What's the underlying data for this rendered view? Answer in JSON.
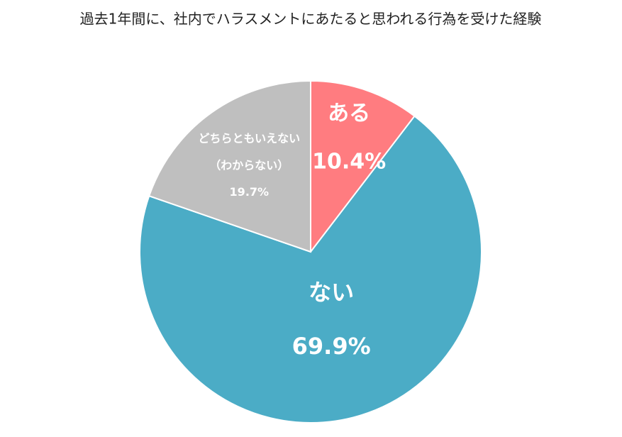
{
  "chart_data": {
    "type": "pie",
    "title": "過去1年間に、社内でハラスメントにあたると思われる行為を受けた経験",
    "categories": [
      "ある",
      "ない",
      "どちらともいえない\n（わからない）"
    ],
    "values": [
      10.4,
      69.9,
      19.7
    ],
    "value_labels": [
      "10.4%",
      "69.9%",
      "19.7%"
    ],
    "colors": [
      "#ff7c80",
      "#4bacc6",
      "#bfbfbf"
    ]
  }
}
